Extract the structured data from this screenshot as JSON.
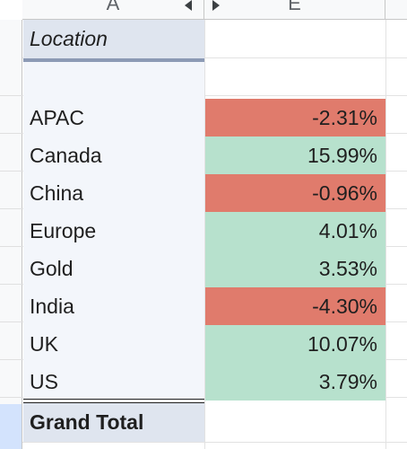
{
  "columns": [
    "A",
    "E"
  ],
  "colors": {
    "negative": "#e07b6c",
    "positive": "#b7e1cd",
    "header_bg": "#dfe5ef",
    "label_bg": "#f3f6fb"
  },
  "pivot": {
    "header_label": "Location",
    "rows": [
      {
        "label": "APAC",
        "value": "-2.31%",
        "sign": "negative"
      },
      {
        "label": "Canada",
        "value": "15.99%",
        "sign": "positive"
      },
      {
        "label": "China",
        "value": "-0.96%",
        "sign": "negative"
      },
      {
        "label": "Europe",
        "value": "4.01%",
        "sign": "positive"
      },
      {
        "label": "Gold",
        "value": "3.53%",
        "sign": "positive"
      },
      {
        "label": "India",
        "value": "-4.30%",
        "sign": "negative"
      },
      {
        "label": "UK",
        "value": "10.07%",
        "sign": "positive"
      },
      {
        "label": "US",
        "value": "3.79%",
        "sign": "positive"
      }
    ],
    "total_label": "Grand Total"
  }
}
